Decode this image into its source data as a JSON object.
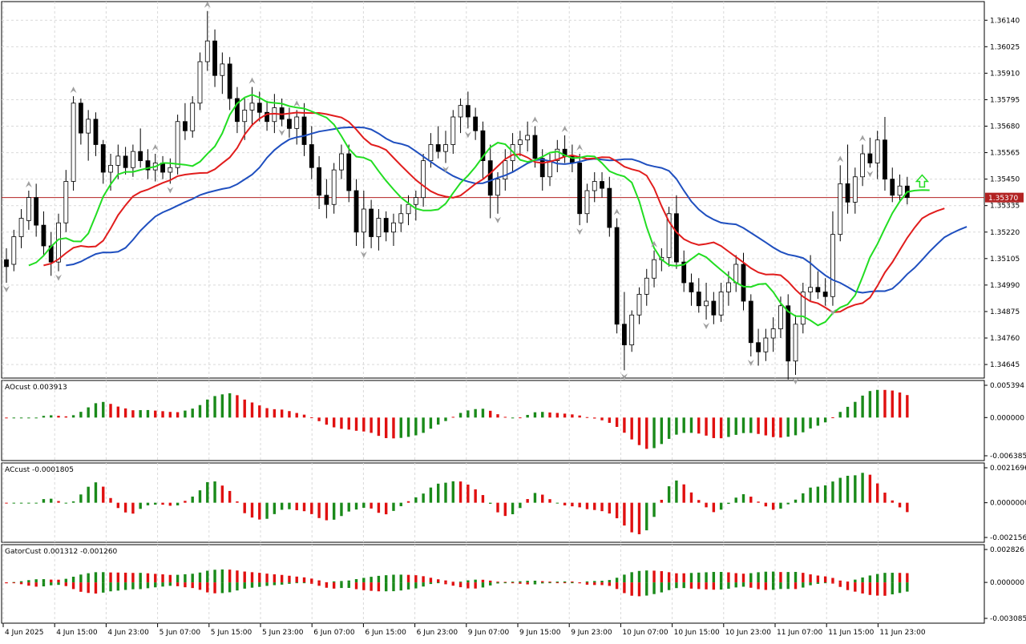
{
  "chart_data": {
    "type": "candlestick",
    "main": {
      "ylim": [
        1.346,
        1.362
      ],
      "ticks": [
        "1.36140",
        "1.36025",
        "1.35910",
        "1.35795",
        "1.35680",
        "1.35565",
        "1.35450",
        "1.35335",
        "1.35220",
        "1.35105",
        "1.34990",
        "1.34875",
        "1.34760",
        "1.34645"
      ],
      "current_price": "1.35370",
      "price_line_color": "#b22222",
      "alligator_colors": {
        "jaw": "#1f4fbf",
        "teeth": "#e11d1d",
        "lips": "#22dd22"
      },
      "bull_color": "#ffffff",
      "bear_color": "#000000",
      "candles": [
        [
          1.351,
          1.3515,
          1.35,
          1.3507
        ],
        [
          1.3508,
          1.3523,
          1.3505,
          1.352
        ],
        [
          1.352,
          1.3532,
          1.3515,
          1.3528
        ],
        [
          1.3527,
          1.354,
          1.3523,
          1.3537
        ],
        [
          1.3537,
          1.3543,
          1.352,
          1.3525
        ],
        [
          1.3525,
          1.3531,
          1.3512,
          1.3516
        ],
        [
          1.3516,
          1.3522,
          1.3503,
          1.3509
        ],
        [
          1.3509,
          1.353,
          1.3505,
          1.3526
        ],
        [
          1.3526,
          1.3549,
          1.3522,
          1.3544
        ],
        [
          1.3544,
          1.3581,
          1.354,
          1.3578
        ],
        [
          1.3578,
          1.358,
          1.356,
          1.3565
        ],
        [
          1.3565,
          1.3575,
          1.3553,
          1.3571
        ],
        [
          1.3571,
          1.3574,
          1.3555,
          1.356
        ],
        [
          1.356,
          1.3562,
          1.3543,
          1.3548
        ],
        [
          1.3548,
          1.3556,
          1.354,
          1.3551
        ],
        [
          1.3551,
          1.356,
          1.3545,
          1.3555
        ],
        [
          1.3555,
          1.3559,
          1.3547,
          1.355
        ],
        [
          1.355,
          1.356,
          1.3546,
          1.3557
        ],
        [
          1.3557,
          1.3567,
          1.355,
          1.3553
        ],
        [
          1.3553,
          1.3558,
          1.3545,
          1.3549
        ],
        [
          1.3549,
          1.3556,
          1.3544,
          1.3552
        ],
        [
          1.3552,
          1.3555,
          1.3545,
          1.3548
        ],
        [
          1.3548,
          1.3554,
          1.3543,
          1.355
        ],
        [
          1.355,
          1.3573,
          1.3547,
          1.357
        ],
        [
          1.357,
          1.3578,
          1.3562,
          1.3566
        ],
        [
          1.3566,
          1.3581,
          1.3563,
          1.3578
        ],
        [
          1.3578,
          1.36,
          1.3575,
          1.3596
        ],
        [
          1.3596,
          1.3618,
          1.3592,
          1.3605
        ],
        [
          1.3605,
          1.361,
          1.3585,
          1.359
        ],
        [
          1.359,
          1.36,
          1.3582,
          1.3595
        ],
        [
          1.3595,
          1.3598,
          1.3575,
          1.358
        ],
        [
          1.358,
          1.3585,
          1.3565,
          1.357
        ],
        [
          1.357,
          1.358,
          1.3562,
          1.3575
        ],
        [
          1.3575,
          1.3585,
          1.3568,
          1.3578
        ],
        [
          1.3578,
          1.3583,
          1.357,
          1.3574
        ],
        [
          1.3574,
          1.3579,
          1.3566,
          1.357
        ],
        [
          1.357,
          1.3582,
          1.3565,
          1.3576
        ],
        [
          1.3576,
          1.358,
          1.3568,
          1.3571
        ],
        [
          1.3571,
          1.3576,
          1.3563,
          1.3567
        ],
        [
          1.3567,
          1.3575,
          1.356,
          1.3572
        ],
        [
          1.3572,
          1.3578,
          1.3555,
          1.356
        ],
        [
          1.356,
          1.3568,
          1.3545,
          1.355
        ],
        [
          1.355,
          1.3555,
          1.3532,
          1.3538
        ],
        [
          1.3538,
          1.3545,
          1.3528,
          1.3534
        ],
        [
          1.3534,
          1.3552,
          1.353,
          1.3549
        ],
        [
          1.3549,
          1.356,
          1.3545,
          1.3556
        ],
        [
          1.3556,
          1.356,
          1.3535,
          1.354
        ],
        [
          1.354,
          1.3545,
          1.3516,
          1.3522
        ],
        [
          1.3522,
          1.354,
          1.3515,
          1.3532
        ],
        [
          1.3532,
          1.3536,
          1.3515,
          1.352
        ],
        [
          1.352,
          1.3532,
          1.3514,
          1.3528
        ],
        [
          1.3528,
          1.3531,
          1.3518,
          1.3522
        ],
        [
          1.3522,
          1.353,
          1.3516,
          1.3526
        ],
        [
          1.3526,
          1.3534,
          1.3522,
          1.353
        ],
        [
          1.353,
          1.3538,
          1.3525,
          1.3534
        ],
        [
          1.3534,
          1.354,
          1.3527,
          1.3537
        ],
        [
          1.3537,
          1.3556,
          1.3533,
          1.3553
        ],
        [
          1.3553,
          1.3565,
          1.355,
          1.356
        ],
        [
          1.356,
          1.3568,
          1.3554,
          1.3557
        ],
        [
          1.3557,
          1.3566,
          1.3552,
          1.356
        ],
        [
          1.356,
          1.3575,
          1.3556,
          1.3572
        ],
        [
          1.3572,
          1.358,
          1.3565,
          1.3577
        ],
        [
          1.3577,
          1.3583,
          1.3567,
          1.3572
        ],
        [
          1.3572,
          1.3576,
          1.3562,
          1.3566
        ],
        [
          1.3566,
          1.357,
          1.3545,
          1.3553
        ],
        [
          1.3553,
          1.356,
          1.3528,
          1.3538
        ],
        [
          1.3538,
          1.3548,
          1.353,
          1.3545
        ],
        [
          1.3545,
          1.3558,
          1.354,
          1.3553
        ],
        [
          1.3553,
          1.3565,
          1.3548,
          1.356
        ],
        [
          1.356,
          1.3566,
          1.3555,
          1.3562
        ],
        [
          1.3562,
          1.357,
          1.3557,
          1.3564
        ],
        [
          1.3564,
          1.3568,
          1.355,
          1.3554
        ],
        [
          1.3554,
          1.3558,
          1.354,
          1.3546
        ],
        [
          1.3546,
          1.3556,
          1.3542,
          1.3553
        ],
        [
          1.3553,
          1.3562,
          1.3548,
          1.3558
        ],
        [
          1.3558,
          1.3564,
          1.3552,
          1.3555
        ],
        [
          1.3555,
          1.356,
          1.3548,
          1.3552
        ],
        [
          1.3552,
          1.3556,
          1.3525,
          1.353
        ],
        [
          1.353,
          1.3543,
          1.3526,
          1.354
        ],
        [
          1.354,
          1.3548,
          1.3535,
          1.3544
        ],
        [
          1.3544,
          1.3548,
          1.3537,
          1.3541
        ],
        [
          1.3541,
          1.3546,
          1.352,
          1.3524
        ],
        [
          1.3524,
          1.3528,
          1.3478,
          1.3482
        ],
        [
          1.3482,
          1.3496,
          1.3462,
          1.3473
        ],
        [
          1.3473,
          1.3488,
          1.347,
          1.3486
        ],
        [
          1.3486,
          1.3498,
          1.3482,
          1.3495
        ],
        [
          1.3495,
          1.3506,
          1.349,
          1.3502
        ],
        [
          1.3502,
          1.3514,
          1.3498,
          1.351
        ],
        [
          1.351,
          1.3515,
          1.3505,
          1.3511
        ],
        [
          1.3511,
          1.3533,
          1.3507,
          1.353
        ],
        [
          1.353,
          1.3538,
          1.3506,
          1.3509
        ],
        [
          1.3509,
          1.3514,
          1.3496,
          1.35
        ],
        [
          1.35,
          1.3504,
          1.349,
          1.3496
        ],
        [
          1.3496,
          1.3502,
          1.3487,
          1.349
        ],
        [
          1.349,
          1.35,
          1.3484,
          1.3492
        ],
        [
          1.3492,
          1.3496,
          1.3482,
          1.3486
        ],
        [
          1.3486,
          1.35,
          1.3483,
          1.3496
        ],
        [
          1.3496,
          1.3505,
          1.349,
          1.35
        ],
        [
          1.35,
          1.3512,
          1.3496,
          1.3508
        ],
        [
          1.3508,
          1.3513,
          1.3488,
          1.3492
        ],
        [
          1.3492,
          1.3495,
          1.3468,
          1.3474
        ],
        [
          1.3474,
          1.348,
          1.3464,
          1.347
        ],
        [
          1.347,
          1.348,
          1.3466,
          1.3476
        ],
        [
          1.3476,
          1.3485,
          1.347,
          1.348
        ],
        [
          1.348,
          1.3494,
          1.3476,
          1.349
        ],
        [
          1.349,
          1.3495,
          1.3458,
          1.3466
        ],
        [
          1.3466,
          1.3486,
          1.346,
          1.3482
        ],
        [
          1.3482,
          1.35,
          1.3478,
          1.3496
        ],
        [
          1.3496,
          1.3512,
          1.3492,
          1.3498
        ],
        [
          1.3498,
          1.3505,
          1.3493,
          1.3496
        ],
        [
          1.3496,
          1.3502,
          1.349,
          1.3494
        ],
        [
          1.3494,
          1.3531,
          1.349,
          1.3521
        ],
        [
          1.3521,
          1.3551,
          1.3518,
          1.3543
        ],
        [
          1.3543,
          1.356,
          1.353,
          1.3535
        ],
        [
          1.3535,
          1.355,
          1.353,
          1.3546
        ],
        [
          1.3546,
          1.356,
          1.3542,
          1.3556
        ],
        [
          1.3556,
          1.3563,
          1.355,
          1.3552
        ],
        [
          1.3552,
          1.3566,
          1.3545,
          1.3562
        ],
        [
          1.3562,
          1.3572,
          1.354,
          1.3545
        ],
        [
          1.3545,
          1.355,
          1.3535,
          1.3538
        ],
        [
          1.3538,
          1.3547,
          1.3535,
          1.3542
        ],
        [
          1.3542,
          1.3546,
          1.3534,
          1.3537
        ]
      ],
      "up_fractal_bars": [
        3,
        9,
        20,
        27,
        33,
        39,
        71,
        75,
        77,
        82,
        87,
        112,
        115
      ],
      "down_fractal_bars": [
        0,
        7,
        22,
        37,
        48,
        59,
        62,
        66,
        77,
        83,
        94,
        100,
        106,
        111,
        116
      ]
    },
    "x_labels": [
      "4 Jun 2025",
      "4 Jun 15:00",
      "4 Jun 23:00",
      "5 Jun 07:00",
      "5 Jun 15:00",
      "5 Jun 23:00",
      "6 Jun 07:00",
      "6 Jun 15:00",
      "6 Jun 23:00",
      "9 Jun 07:00",
      "9 Jun 15:00",
      "9 Jun 23:00",
      "10 Jun 07:00",
      "10 Jun 15:00",
      "10 Jun 23:00",
      "11 Jun 07:00",
      "11 Jun 15:00",
      "11 Jun 23:00"
    ],
    "panels": [
      {
        "name": "ao",
        "label": "AOcust 0.003913",
        "ticks": [
          "0.005394",
          "0.000000",
          "-0.006385"
        ],
        "ylim": [
          -0.006385,
          0.005394
        ],
        "up_color": "#1a8a1a",
        "down_color": "#e01010"
      },
      {
        "name": "ac",
        "label": "ACcust -0.0001805",
        "ticks": [
          "0.0021696",
          "0.0000000",
          "-0.0021568"
        ],
        "ylim": [
          -0.0021568,
          0.0021696
        ],
        "up_color": "#1a8a1a",
        "down_color": "#e01010"
      },
      {
        "name": "gator",
        "label": "GatorCust 0.001312 -0.001260",
        "ticks": [
          "0.002826",
          "0.000000",
          "-0.003085"
        ],
        "ylim": [
          -0.003085,
          0.002826
        ],
        "up_color": "#1a8a1a",
        "down_color": "#e01010"
      }
    ]
  }
}
